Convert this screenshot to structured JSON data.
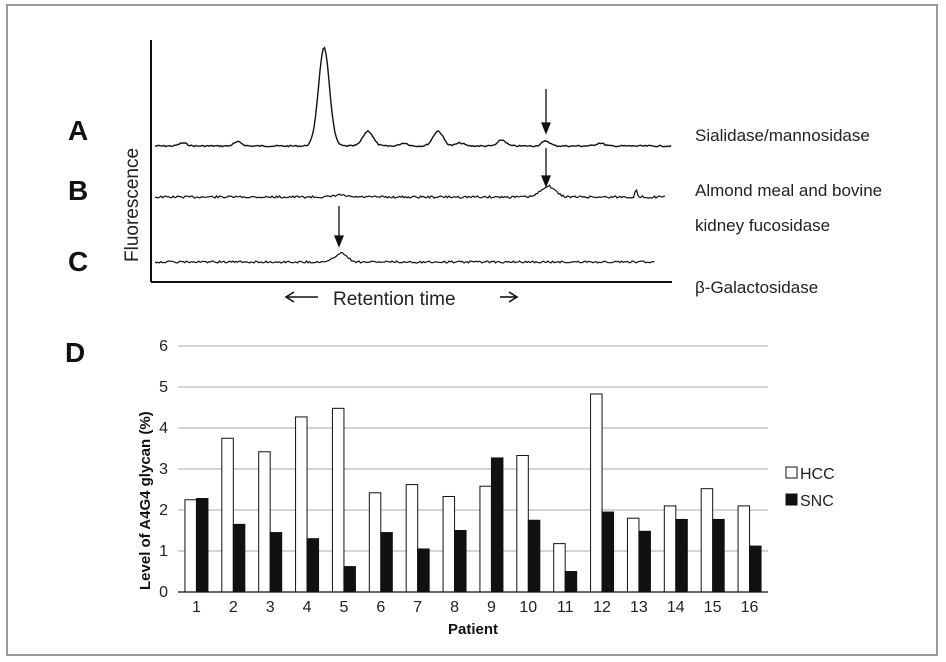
{
  "panels": {
    "A": "A",
    "B": "B",
    "C": "C",
    "D": "D"
  },
  "chromatogram": {
    "ylabel": "Fluorescence",
    "xlabel": "Retention time",
    "traces": [
      {
        "panel": "A",
        "label": "Sialidase/mannosidase"
      },
      {
        "panel": "B",
        "label_lines": [
          "Almond meal and bovine",
          "kidney fucosidase"
        ]
      },
      {
        "panel": "C",
        "label": "β-Galactosidase"
      }
    ]
  },
  "chart_data": {
    "type": "bar",
    "title": "",
    "xlabel": "Patient",
    "ylabel": "Level of A4G4 glycan (%)",
    "ylim": [
      0,
      6
    ],
    "yticks": [
      0,
      1,
      2,
      3,
      4,
      5,
      6
    ],
    "grid": true,
    "legend": "right",
    "categories": [
      "1",
      "2",
      "3",
      "4",
      "5",
      "6",
      "7",
      "8",
      "9",
      "10",
      "11",
      "12",
      "13",
      "14",
      "15",
      "16"
    ],
    "series": [
      {
        "name": "HCC",
        "color": "#ffffff",
        "values": [
          2.25,
          3.75,
          3.42,
          4.27,
          4.48,
          2.42,
          2.62,
          2.33,
          2.58,
          3.33,
          1.18,
          4.83,
          1.8,
          2.1,
          2.52,
          2.1
        ]
      },
      {
        "name": "SNC",
        "color": "#111111",
        "values": [
          2.28,
          1.65,
          1.45,
          1.3,
          0.62,
          1.45,
          1.05,
          1.5,
          3.27,
          1.75,
          0.5,
          1.95,
          1.48,
          1.77,
          1.77,
          1.12
        ]
      }
    ]
  }
}
